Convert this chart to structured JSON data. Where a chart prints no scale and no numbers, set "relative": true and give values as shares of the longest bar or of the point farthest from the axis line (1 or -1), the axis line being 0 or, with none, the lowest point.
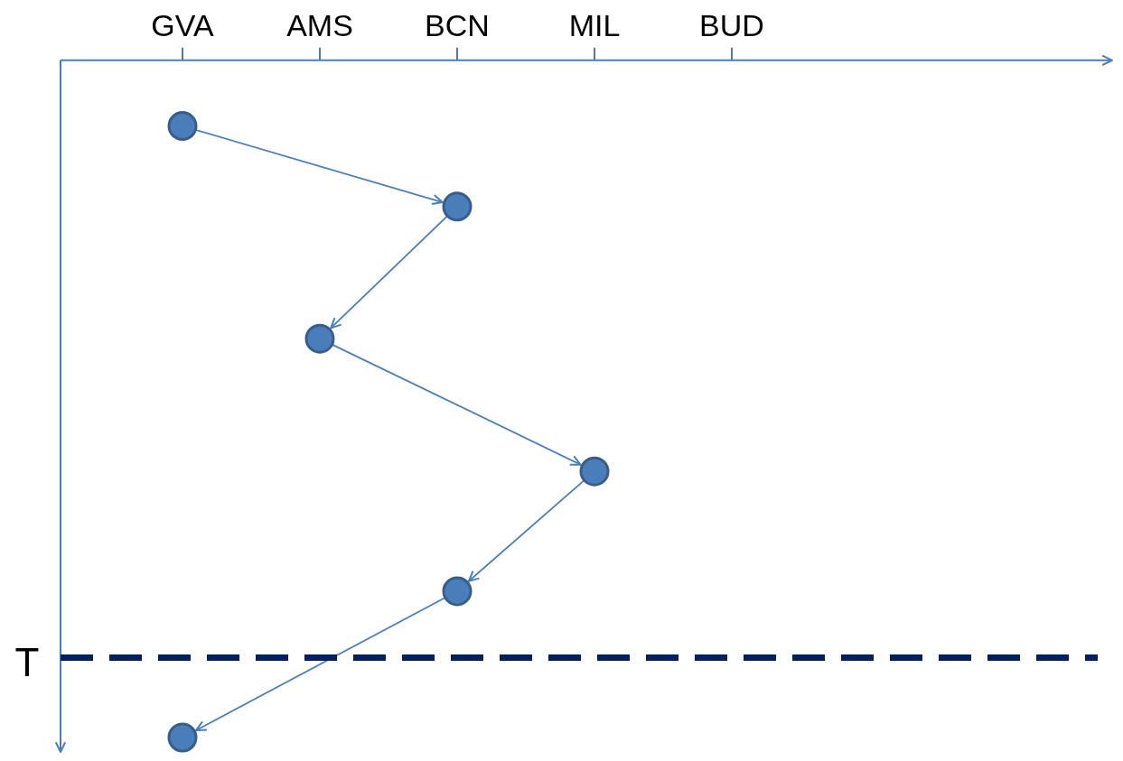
{
  "chart_data": {
    "type": "line",
    "relative": true,
    "marker": "circle",
    "categories": [
      "GVA",
      "AMS",
      "BCN",
      "MIL",
      "BUD"
    ],
    "series": [
      {
        "x": [
          "GVA",
          "BCN",
          "AMS",
          "MIL",
          "BCN",
          "GVA"
        ],
        "values": [
          -0.097,
          -0.216,
          -0.411,
          -0.607,
          -0.784,
          -1
        ],
        "color": "#4a7ebb"
      }
    ],
    "ref_lines": [
      {
        "axis": "y",
        "value": -0.882,
        "label": "T",
        "color": "#002060",
        "line_style": "dashed"
      }
    ]
  }
}
